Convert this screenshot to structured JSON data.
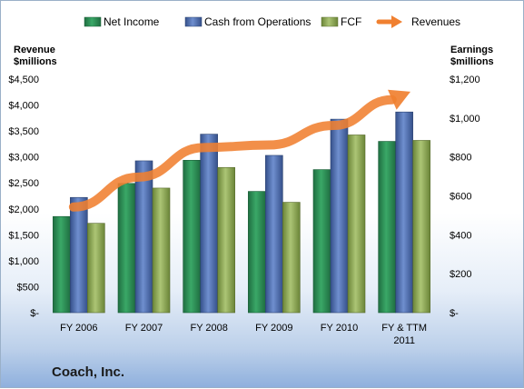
{
  "chart_data": {
    "type": "bar",
    "title": "Coach, Inc.",
    "categories": [
      "FY 2006",
      "FY 2007",
      "FY 2008",
      "FY 2009",
      "FY 2010",
      "FY & TTM 2011"
    ],
    "left_axis": {
      "title_line1": "Revenue",
      "title_line2": "$millions",
      "ylim": [
        0,
        4500
      ],
      "ticks": [
        0,
        500,
        1000,
        1500,
        2000,
        2500,
        3000,
        3500,
        4000,
        4500
      ],
      "tick_labels": [
        "$-",
        "$500",
        "$1,000",
        "$1,500",
        "$2,000",
        "$2,500",
        "$3,000",
        "$3,500",
        "$4,000",
        "$4,500"
      ]
    },
    "right_axis": {
      "title_line1": "Earnings",
      "title_line2": "$millions",
      "ylim": [
        0,
        1200
      ],
      "ticks": [
        0,
        200,
        400,
        600,
        800,
        1000,
        1200
      ],
      "tick_labels": [
        "$-",
        "$200",
        "$400",
        "$600",
        "$800",
        "$1,000",
        "$1,200"
      ]
    },
    "series": [
      {
        "name": "Net Income",
        "kind": "bar",
        "axis": "right",
        "color": "#2e8b57",
        "values": [
          494,
          664,
          783,
          623,
          735,
          880
        ]
      },
      {
        "name": "Cash from Operations",
        "kind": "bar",
        "axis": "right",
        "color": "#4f70b0",
        "values": [
          592,
          780,
          917,
          808,
          994,
          1031
        ]
      },
      {
        "name": "FCF",
        "kind": "bar",
        "axis": "right",
        "color": "#8faa55",
        "values": [
          459,
          640,
          746,
          567,
          913,
          885
        ]
      },
      {
        "name": "Revenues",
        "kind": "arrow-line",
        "axis": "left",
        "color": "#f08030",
        "values": [
          2035,
          2612,
          3181,
          3230,
          3608,
          4158
        ]
      }
    ],
    "grid": false,
    "legend_position": "top"
  }
}
